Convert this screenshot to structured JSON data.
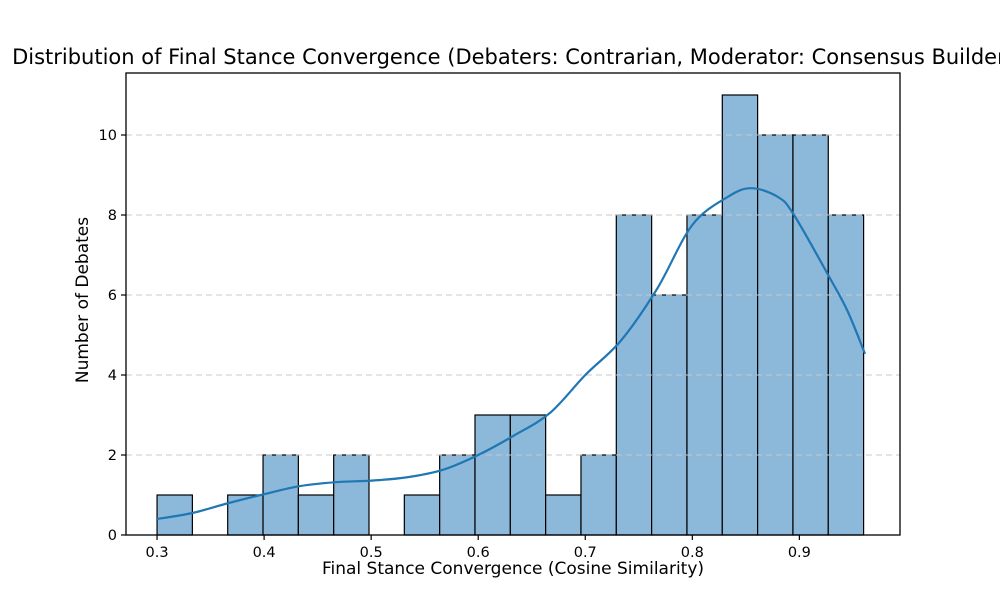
{
  "chart_data": {
    "type": "histogram",
    "title": "Distribution of Final Stance Convergence (Debaters: Contrarian, Moderator: Consensus Builder)",
    "xlabel": "Final Stance Convergence (Cosine Similarity)",
    "ylabel": "Number of Debates",
    "bin_start": 0.3,
    "bin_width": 0.033,
    "counts": [
      1,
      0,
      1,
      2,
      1,
      2,
      0,
      1,
      2,
      3,
      3,
      1,
      2,
      8,
      6,
      8,
      11,
      10,
      10,
      8
    ],
    "x_ticks": [
      0.3,
      0.4,
      0.5,
      0.6,
      0.7,
      0.8,
      0.9
    ],
    "y_ticks": [
      0,
      2,
      4,
      6,
      8,
      10
    ],
    "xlim": [
      0.271,
      0.994
    ],
    "ylim": [
      0,
      11.55
    ],
    "grid": {
      "axis": "y",
      "style": "dashed",
      "position": "above-bars"
    },
    "legend": "none",
    "kde_curve": {
      "x": [
        0.3,
        0.333,
        0.367,
        0.4,
        0.433,
        0.467,
        0.5,
        0.533,
        0.567,
        0.6,
        0.633,
        0.667,
        0.7,
        0.733,
        0.767,
        0.8,
        0.833,
        0.855,
        0.88,
        0.895,
        0.929,
        0.945,
        0.961
      ],
      "y": [
        0.4,
        0.55,
        0.8,
        1.02,
        1.22,
        1.32,
        1.36,
        1.44,
        1.63,
        2.0,
        2.48,
        3.05,
        4.0,
        4.85,
        6.15,
        7.75,
        8.45,
        8.67,
        8.45,
        8.0,
        6.4,
        5.6,
        4.55
      ]
    },
    "colors": {
      "bar_fill": "#8cb8da",
      "bar_edge": "#000000",
      "kde_line": "#1f77b4",
      "grid": "#c9c9c9",
      "text": "#000000",
      "spine": "#000000",
      "background": "#ffffff"
    }
  }
}
